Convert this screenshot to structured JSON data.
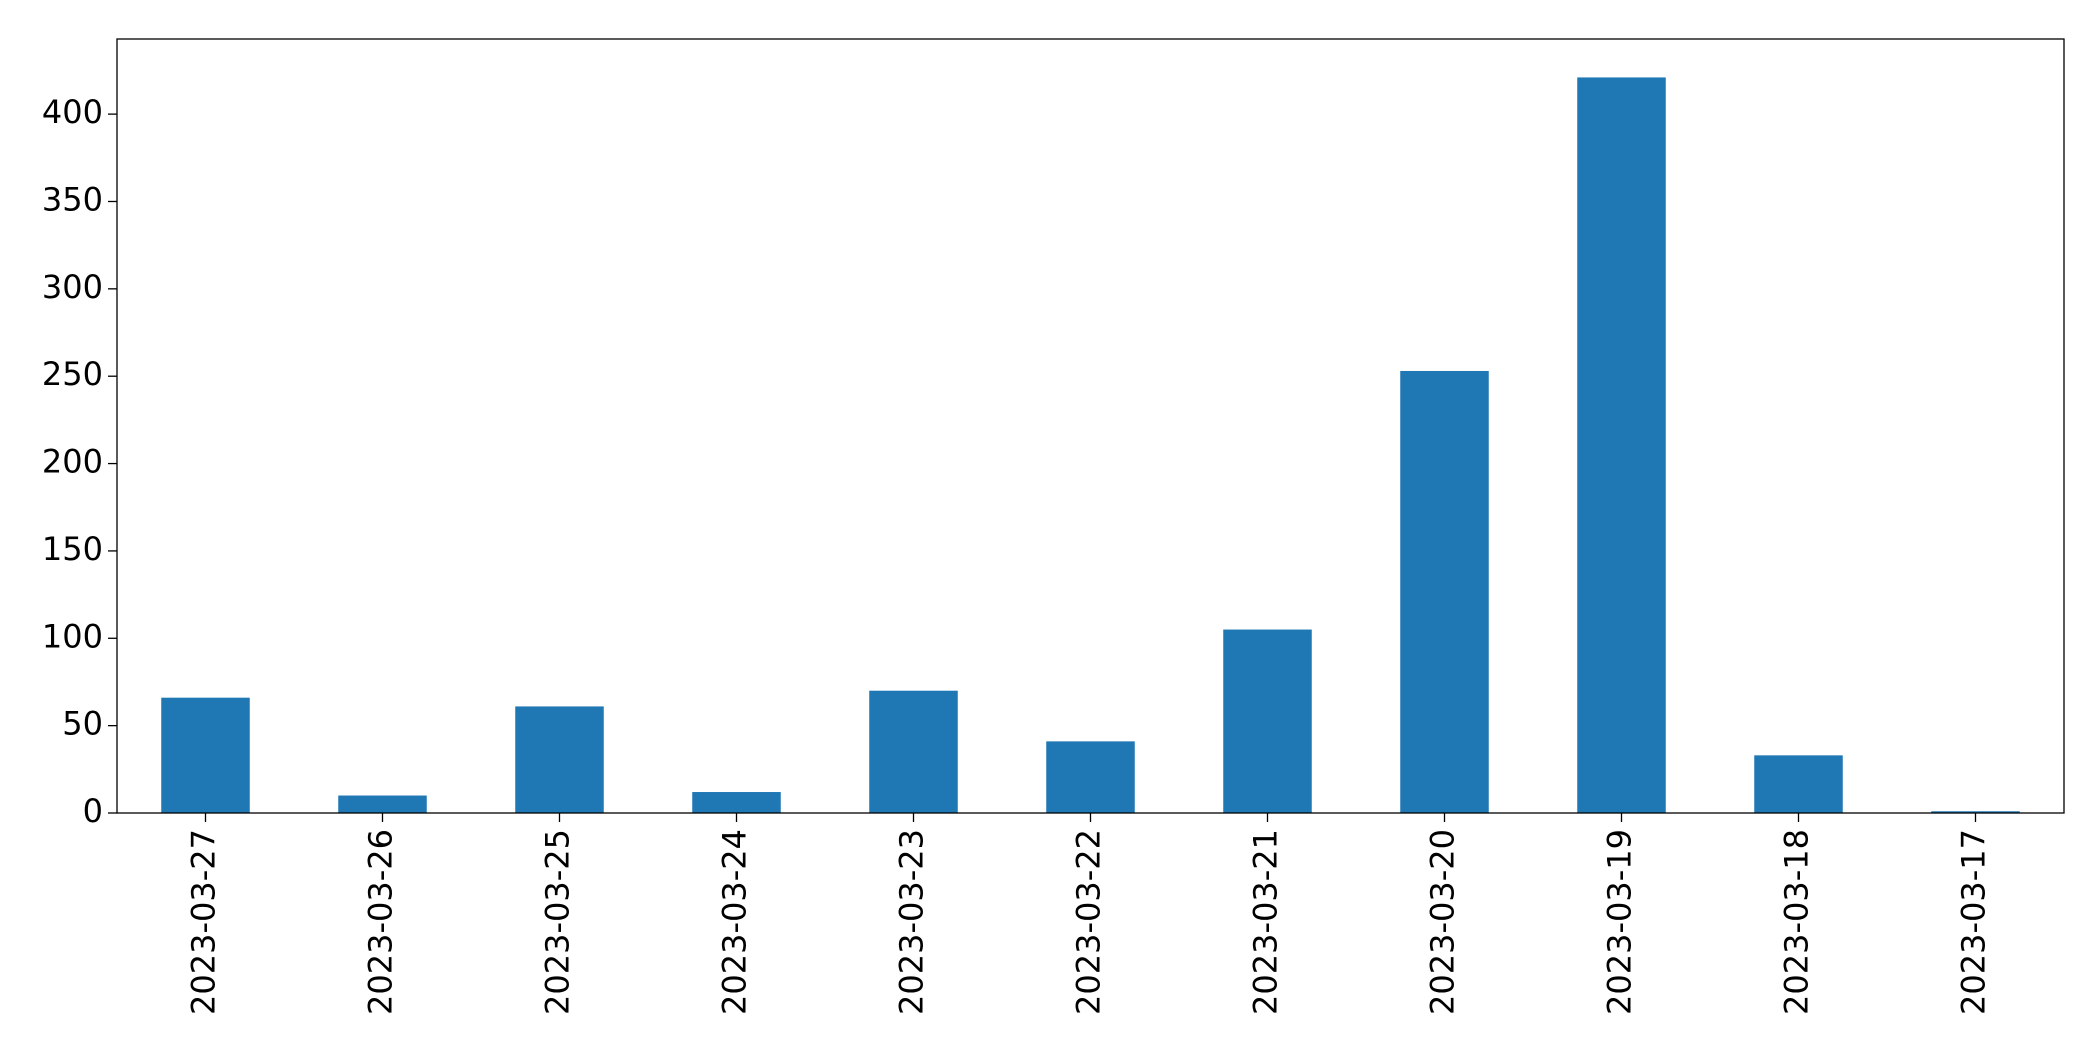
{
  "chart_data": {
    "type": "bar",
    "categories": [
      "2023-03-27",
      "2023-03-26",
      "2023-03-25",
      "2023-03-24",
      "2023-03-23",
      "2023-03-22",
      "2023-03-21",
      "2023-03-20",
      "2023-03-19",
      "2023-03-18",
      "2023-03-17"
    ],
    "values": [
      66,
      10,
      61,
      12,
      70,
      41,
      105,
      253,
      421,
      33,
      1
    ],
    "color": "#1f77b4",
    "ylim": [
      0,
      443
    ],
    "yticks": [
      0,
      50,
      100,
      150,
      200,
      250,
      300,
      350,
      400
    ],
    "grid": false
  }
}
